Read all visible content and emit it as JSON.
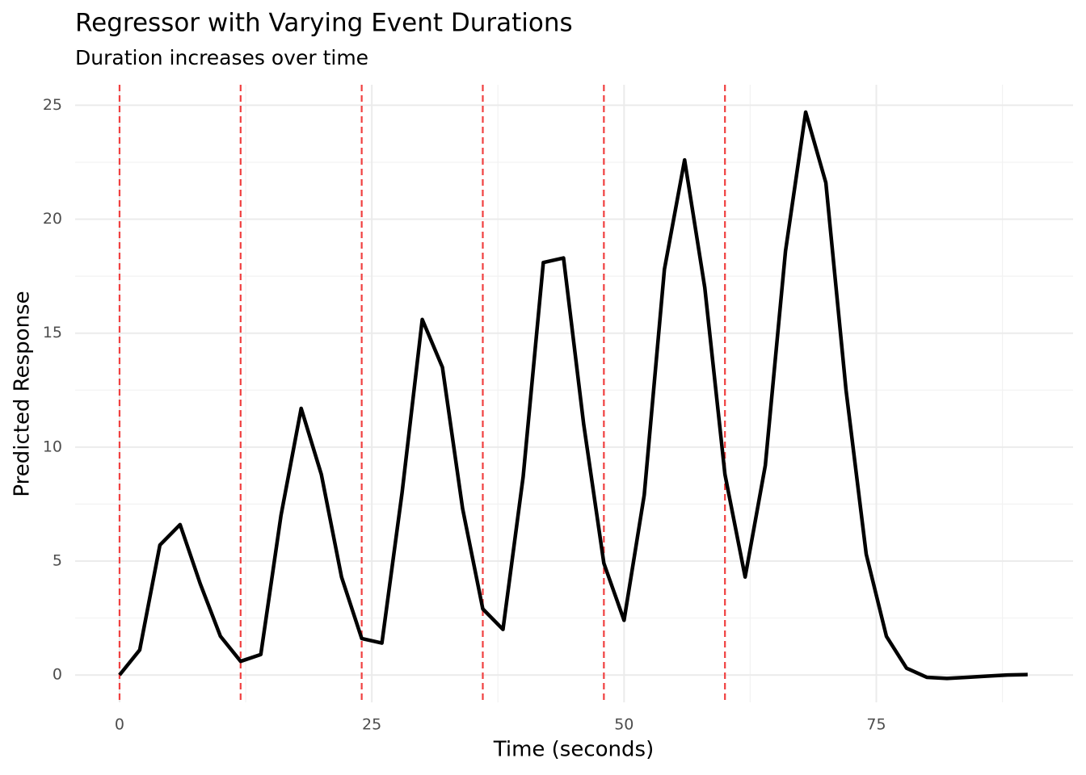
{
  "chart_data": {
    "type": "line",
    "title": "Regressor with Varying Event Durations",
    "subtitle": "Duration increases over time",
    "x_label": "Time (seconds)",
    "y_label": "Predicted Response",
    "x": [
      0,
      2,
      4,
      6,
      8,
      10,
      12,
      14,
      16,
      18,
      20,
      22,
      24,
      26,
      28,
      30,
      32,
      34,
      36,
      38,
      40,
      42,
      44,
      46,
      48,
      50,
      52,
      54,
      56,
      58,
      60,
      62,
      64,
      66,
      68,
      70,
      72,
      74,
      76,
      78,
      80,
      82,
      84,
      86,
      88,
      90
    ],
    "series": [
      {
        "name": "Predicted Response",
        "color": "#000000",
        "values": [
          0.0,
          1.1,
          5.7,
          6.6,
          4.0,
          1.7,
          0.6,
          0.9,
          7.0,
          11.7,
          8.8,
          4.3,
          1.6,
          1.4,
          8.0,
          15.6,
          13.5,
          7.3,
          2.9,
          2.0,
          8.7,
          18.1,
          18.3,
          11.0,
          4.9,
          2.4,
          7.9,
          17.8,
          22.6,
          17.0,
          8.8,
          4.3,
          9.2,
          18.6,
          24.7,
          21.6,
          12.5,
          5.3,
          1.7,
          0.3,
          -0.1,
          -0.15,
          -0.1,
          -0.05,
          0.0,
          0.02
        ]
      }
    ],
    "event_onsets": [
      0,
      12,
      24,
      36,
      48,
      60
    ],
    "event_color": "#f04040",
    "xlim": [
      -4.4,
      94.5
    ],
    "ylim": [
      -1.2,
      25.9
    ],
    "xticks": [
      0,
      25,
      50,
      75
    ],
    "yticks": [
      0,
      5,
      10,
      15,
      20,
      25
    ],
    "grid": true
  }
}
